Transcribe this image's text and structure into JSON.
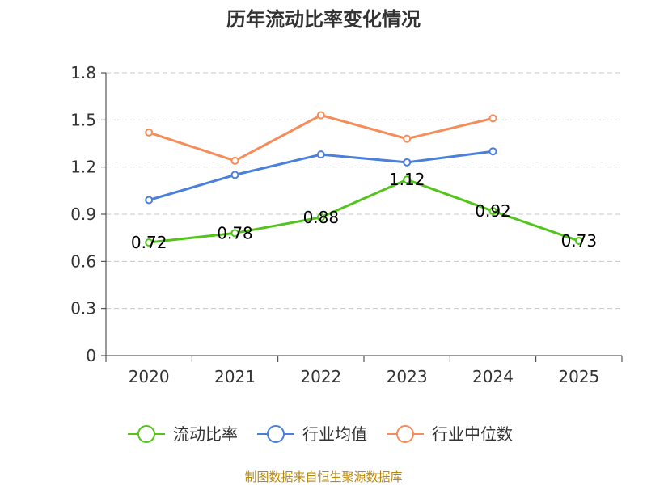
{
  "chart_data": {
    "type": "line",
    "title": "历年流动比率变化情况",
    "xlabel": "",
    "ylabel": "",
    "categories": [
      "2020",
      "2021",
      "2022",
      "2023",
      "2024",
      "2025"
    ],
    "ylim": [
      0,
      1.8
    ],
    "yticks": [
      0,
      0.3,
      0.6,
      0.9,
      1.2,
      1.5,
      1.8
    ],
    "ytick_labels": [
      "0",
      "0.3",
      "0.6",
      "0.9",
      "1.2",
      "1.5",
      "1.8"
    ],
    "grid": true,
    "legend_position": "bottom",
    "series": [
      {
        "name": "流动比率",
        "color": "#52c41a",
        "values": [
          0.72,
          0.78,
          0.88,
          1.12,
          0.92,
          0.73
        ],
        "labels": [
          "0.72",
          "0.78",
          "0.88",
          "1.12",
          "0.92",
          "0.73"
        ]
      },
      {
        "name": "行业均值",
        "color": "#4a7fdc",
        "values": [
          0.99,
          1.15,
          1.28,
          1.23,
          1.3,
          null
        ]
      },
      {
        "name": "行业中位数",
        "color": "#f58c5a",
        "values": [
          1.42,
          1.24,
          1.53,
          1.38,
          1.51,
          null
        ]
      }
    ],
    "source": "制图数据来自恒生聚源数据库"
  }
}
